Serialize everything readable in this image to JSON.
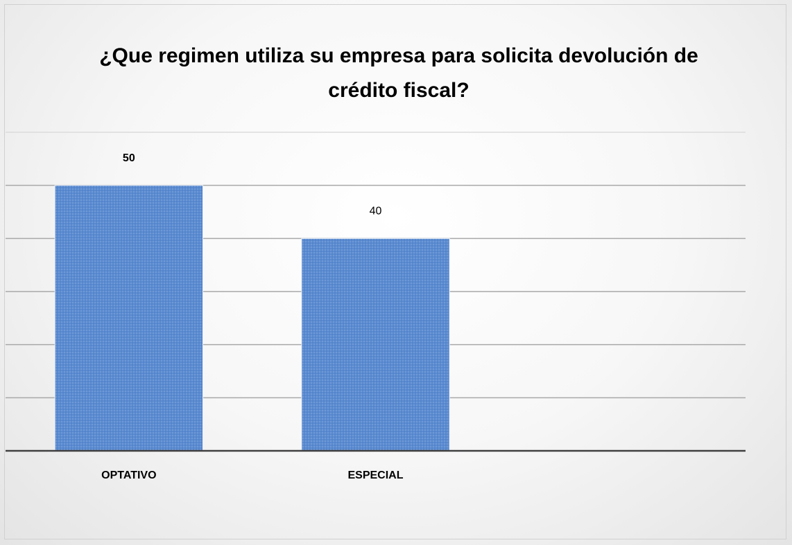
{
  "chart_data": {
    "type": "bar",
    "title": "¿Que regimen utiliza su empresa para solicita devolución de crédito fiscal?",
    "categories": [
      "OPTATIVO",
      "ESPECIAL",
      null
    ],
    "values": [
      50,
      40,
      null
    ],
    "value_label_weights": [
      "bold",
      "normal",
      null
    ],
    "color": "#5b8bd0",
    "ylim": [
      0,
      60
    ],
    "yticks": [
      0,
      10,
      20,
      30,
      40,
      50,
      60
    ],
    "grid": true
  }
}
